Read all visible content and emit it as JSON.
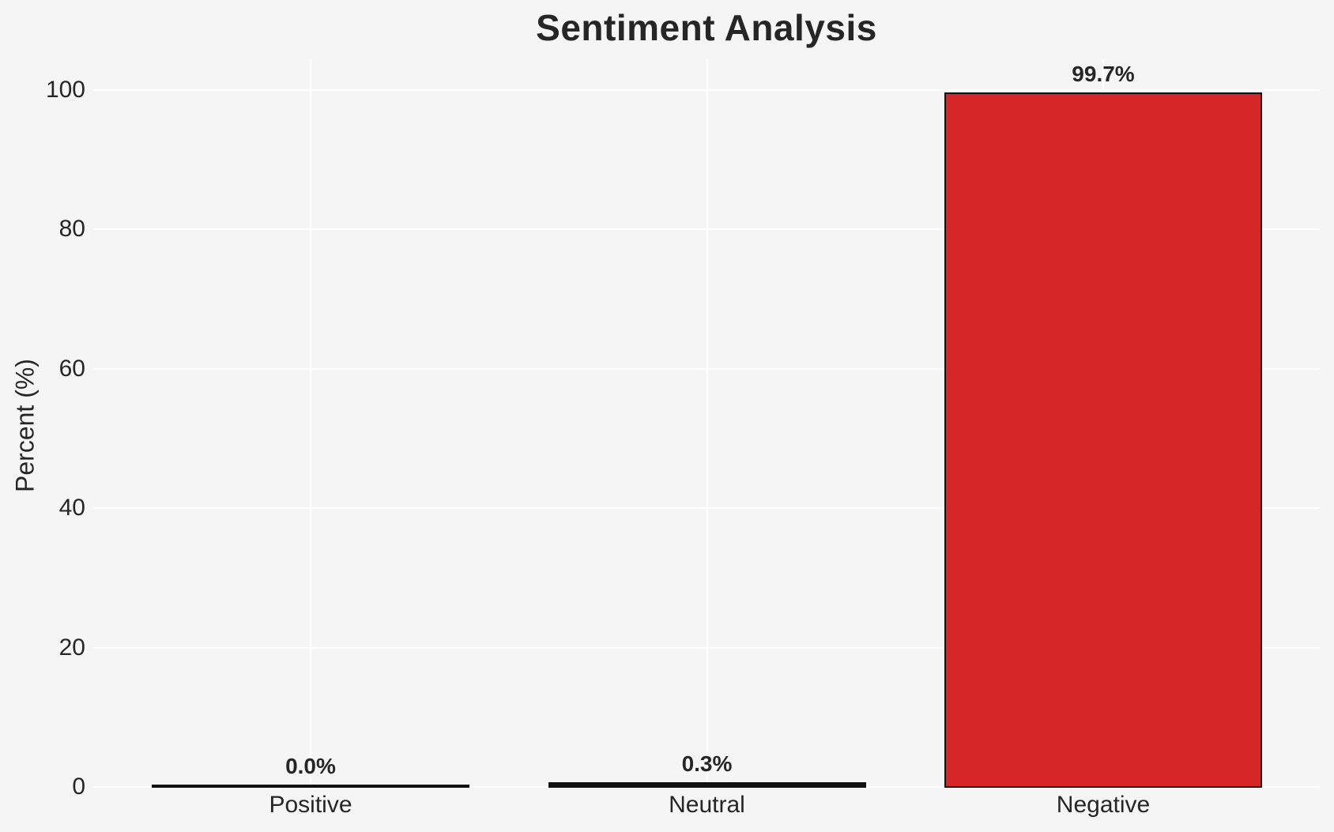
{
  "chart_data": {
    "type": "bar",
    "title": "Sentiment Analysis",
    "xlabel": "",
    "ylabel": "Percent (%)",
    "categories": [
      "Positive",
      "Neutral",
      "Negative"
    ],
    "values": [
      0.0,
      0.3,
      99.7
    ],
    "value_labels": [
      "0.0%",
      "0.3%",
      "99.7%"
    ],
    "yticks": [
      0,
      20,
      40,
      60,
      80,
      100
    ],
    "ytick_labels": [
      "0",
      "20",
      "40",
      "60",
      "80",
      "100"
    ],
    "ylim": [
      0,
      105
    ],
    "grid": "on",
    "legend": "none",
    "colors": {
      "background": "#f5f5f6",
      "gridline": "#ffffff",
      "text": "#262626",
      "bar_edge": "#111111",
      "bar_fills": [
        "none",
        "none",
        "#d62728"
      ]
    }
  }
}
